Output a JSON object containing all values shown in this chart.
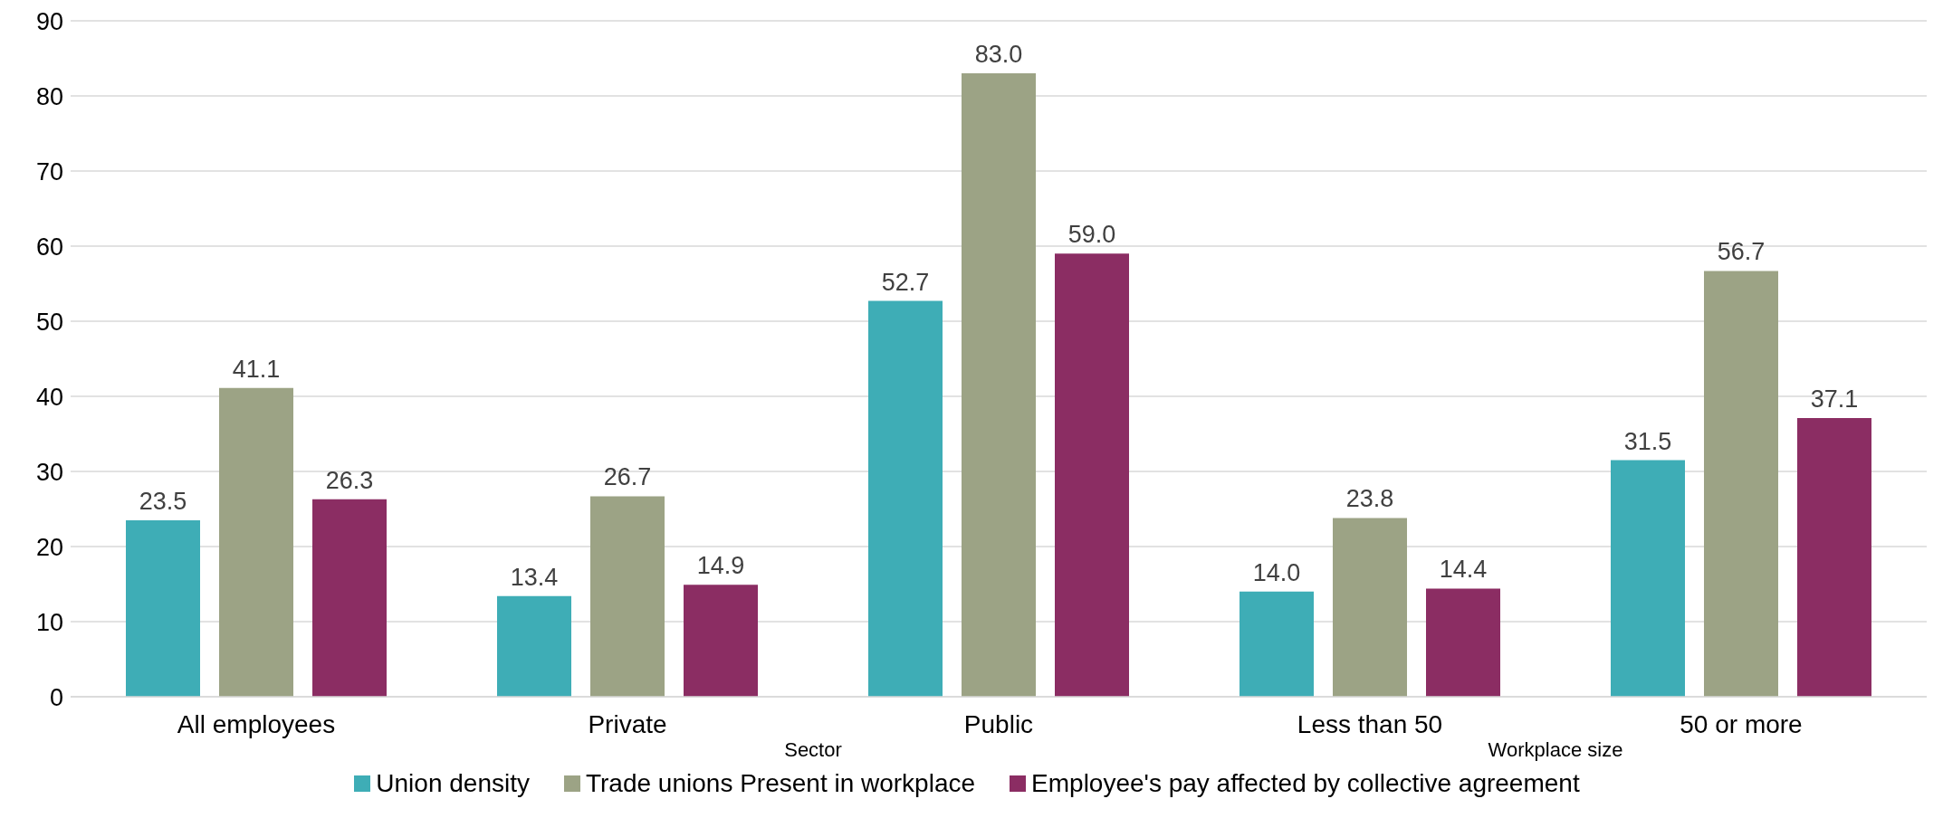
{
  "chart_data": {
    "type": "bar",
    "categories": [
      "All employees",
      "Private",
      "Public",
      "Less than 50",
      "50 or more"
    ],
    "series": [
      {
        "name": "Union density",
        "color": "#3eadb6",
        "values": [
          23.5,
          13.4,
          52.7,
          14.0,
          31.5
        ],
        "value_labels": [
          "23.5",
          "13.4",
          "52.7",
          "14.0",
          "31.5"
        ]
      },
      {
        "name": "Trade unions Present in workplace",
        "color": "#9ca385",
        "values": [
          41.1,
          26.7,
          83.0,
          23.8,
          56.7
        ],
        "value_labels": [
          "41.1",
          "26.7",
          "83.0",
          "23.8",
          "56.7"
        ]
      },
      {
        "name": "Employee's pay affected by collective agreement",
        "color": "#8b2d63",
        "values": [
          26.3,
          14.9,
          59.0,
          14.4,
          37.1
        ],
        "value_labels": [
          "26.3",
          "14.9",
          "59.0",
          "14.4",
          "37.1"
        ]
      }
    ],
    "ylim": [
      0,
      90
    ],
    "yticks": [
      0,
      10,
      20,
      30,
      40,
      50,
      60,
      70,
      80,
      90
    ],
    "grid": "y",
    "legend": "bottom",
    "annotations": [
      "Sector",
      "Workplace size"
    ]
  }
}
